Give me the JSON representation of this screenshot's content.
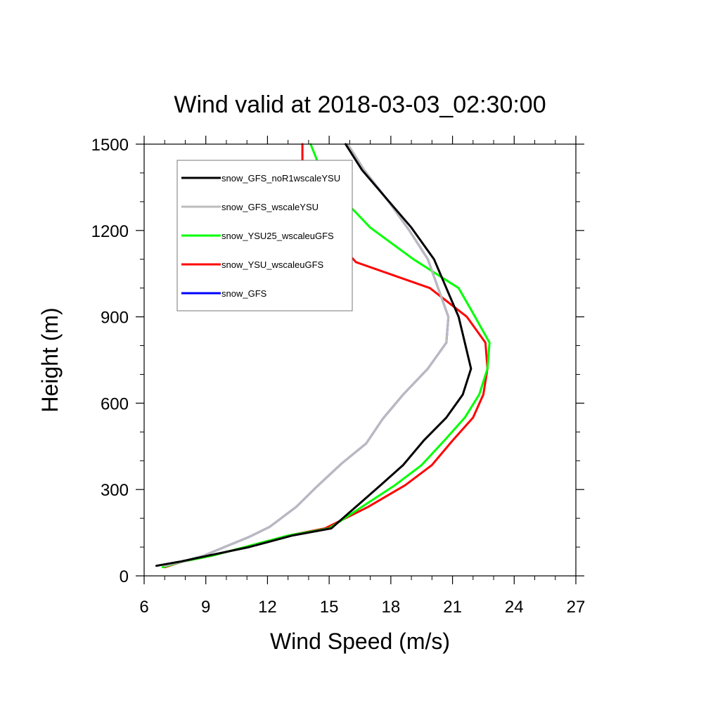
{
  "chart_data": {
    "type": "line",
    "title": "Wind valid at 2018-03-03_02:30:00",
    "xlabel": "Wind Speed (m/s)",
    "ylabel": "Height (m)",
    "xlim": [
      6,
      27
    ],
    "ylim": [
      0,
      1500
    ],
    "x_ticks": [
      6,
      9,
      12,
      15,
      18,
      21,
      24,
      27
    ],
    "y_ticks": [
      0,
      300,
      600,
      900,
      1200,
      1500
    ],
    "x_minor_step": 1,
    "y_minor_step": 100,
    "grid": false,
    "legend": "top-left",
    "series": [
      {
        "name": "snow_GFS_noR1wscaleYSU",
        "color": "#000000",
        "points": [
          [
            6.6,
            35
          ],
          [
            7.8,
            50
          ],
          [
            9.1,
            70
          ],
          [
            11.1,
            100
          ],
          [
            13.2,
            140
          ],
          [
            15.1,
            165
          ],
          [
            16.3,
            240
          ],
          [
            17.5,
            315
          ],
          [
            18.6,
            385
          ],
          [
            19.6,
            470
          ],
          [
            20.7,
            550
          ],
          [
            21.5,
            630
          ],
          [
            21.9,
            720
          ],
          [
            21.6,
            810
          ],
          [
            21.3,
            900
          ],
          [
            20.7,
            1000
          ],
          [
            20.1,
            1100
          ],
          [
            19.0,
            1210
          ],
          [
            17.8,
            1310
          ],
          [
            16.6,
            1410
          ],
          [
            15.8,
            1500
          ]
        ]
      },
      {
        "name": "snow_GFS_wscaleYSU",
        "color": "#bbbbbb",
        "points": [
          [
            7.0,
            35
          ],
          [
            7.9,
            50
          ],
          [
            8.9,
            70
          ],
          [
            9.9,
            100
          ],
          [
            11.1,
            135
          ],
          [
            12.1,
            170
          ],
          [
            13.4,
            240
          ],
          [
            14.4,
            310
          ],
          [
            15.6,
            390
          ],
          [
            16.8,
            460
          ],
          [
            17.6,
            545
          ],
          [
            18.6,
            630
          ],
          [
            19.8,
            720
          ],
          [
            20.7,
            810
          ],
          [
            20.8,
            900
          ],
          [
            20.3,
            1000
          ],
          [
            19.8,
            1100
          ],
          [
            18.9,
            1200
          ],
          [
            17.9,
            1300
          ],
          [
            16.7,
            1410
          ],
          [
            15.9,
            1500
          ]
        ]
      },
      {
        "name": "snow_YSU25_wscaleuGFS",
        "color": "#00ff00",
        "points": [
          [
            6.9,
            30
          ],
          [
            7.9,
            50
          ],
          [
            9.3,
            70
          ],
          [
            10.9,
            100
          ],
          [
            13.0,
            140
          ],
          [
            15.0,
            165
          ],
          [
            16.6,
            240
          ],
          [
            18.2,
            315
          ],
          [
            19.5,
            385
          ],
          [
            20.6,
            470
          ],
          [
            21.6,
            550
          ],
          [
            22.3,
            630
          ],
          [
            22.7,
            720
          ],
          [
            22.8,
            810
          ],
          [
            22.1,
            900
          ],
          [
            21.3,
            1000
          ],
          [
            19.1,
            1100
          ],
          [
            17.0,
            1210
          ],
          [
            15.8,
            1300
          ],
          [
            14.6,
            1410
          ],
          [
            14.1,
            1500
          ]
        ]
      },
      {
        "name": "snow_YSU_wscaleuGFS",
        "color": "#ff0000",
        "points": [
          [
            7.0,
            30
          ],
          [
            7.9,
            50
          ],
          [
            9.3,
            70
          ],
          [
            10.9,
            100
          ],
          [
            13.0,
            140
          ],
          [
            14.8,
            165
          ],
          [
            16.9,
            240
          ],
          [
            18.7,
            315
          ],
          [
            20.0,
            385
          ],
          [
            21.0,
            470
          ],
          [
            22.0,
            550
          ],
          [
            22.5,
            630
          ],
          [
            22.7,
            720
          ],
          [
            22.6,
            810
          ],
          [
            21.7,
            900
          ],
          [
            19.9,
            1000
          ],
          [
            16.3,
            1090
          ],
          [
            14.9,
            1200
          ],
          [
            14.0,
            1300
          ],
          [
            13.7,
            1410
          ],
          [
            13.7,
            1500
          ]
        ]
      },
      {
        "name": "snow_GFS",
        "color": "#0000ff",
        "points": [
          [
            7.0,
            35
          ],
          [
            7.9,
            50
          ],
          [
            8.9,
            70
          ],
          [
            9.9,
            100
          ],
          [
            11.1,
            135
          ],
          [
            12.1,
            170
          ],
          [
            13.4,
            240
          ],
          [
            14.4,
            310
          ],
          [
            15.6,
            390
          ],
          [
            16.8,
            460
          ],
          [
            17.6,
            545
          ],
          [
            18.6,
            630
          ],
          [
            19.8,
            720
          ],
          [
            20.7,
            810
          ],
          [
            20.8,
            900
          ],
          [
            20.3,
            1000
          ],
          [
            19.8,
            1100
          ],
          [
            18.9,
            1200
          ],
          [
            17.9,
            1300
          ],
          [
            16.7,
            1410
          ],
          [
            15.9,
            1500
          ]
        ]
      }
    ]
  }
}
